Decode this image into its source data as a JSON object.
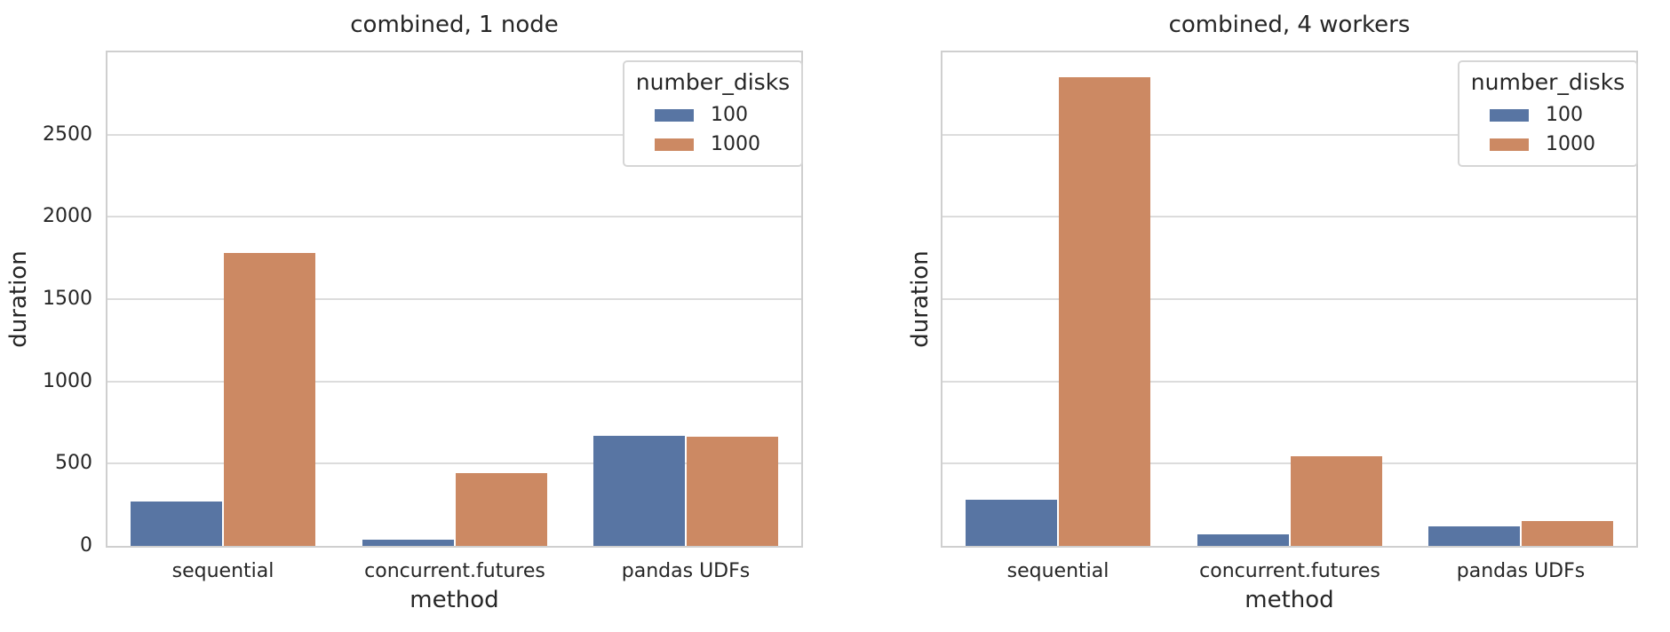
{
  "figure": {
    "background": "#ffffff",
    "text_color": "#262626",
    "grid_color": "#dcdcdc",
    "spine_color": "#cfcfcf"
  },
  "chart_data": [
    {
      "type": "bar",
      "title": "combined, 1 node",
      "xlabel": "method",
      "ylabel": "duration",
      "categories": [
        "sequential",
        "concurrent.futures",
        "pandas UDFs"
      ],
      "series": [
        {
          "name": "100",
          "color": "#5875A3",
          "values": [
            270,
            40,
            670
          ]
        },
        {
          "name": "1000",
          "color": "#CC8963",
          "values": [
            1780,
            445,
            665
          ]
        }
      ],
      "ylim": [
        0,
        3000
      ],
      "yticks": [
        0,
        500,
        1000,
        1500,
        2000,
        2500
      ],
      "show_ytick_labels": true,
      "grid": true,
      "legend": {
        "title": "number_disks",
        "position": "upper right",
        "entries": [
          "100",
          "1000"
        ]
      }
    },
    {
      "type": "bar",
      "title": "combined, 4 workers",
      "xlabel": "method",
      "ylabel": "duration",
      "categories": [
        "sequential",
        "concurrent.futures",
        "pandas UDFs"
      ],
      "series": [
        {
          "name": "100",
          "color": "#5875A3",
          "values": [
            280,
            70,
            120
          ]
        },
        {
          "name": "1000",
          "color": "#CC8963",
          "values": [
            2850,
            545,
            150
          ]
        }
      ],
      "ylim": [
        0,
        3000
      ],
      "yticks": [
        0,
        500,
        1000,
        1500,
        2000,
        2500
      ],
      "show_ytick_labels": false,
      "grid": true,
      "legend": {
        "title": "number_disks",
        "position": "upper right",
        "entries": [
          "100",
          "1000"
        ]
      }
    }
  ]
}
